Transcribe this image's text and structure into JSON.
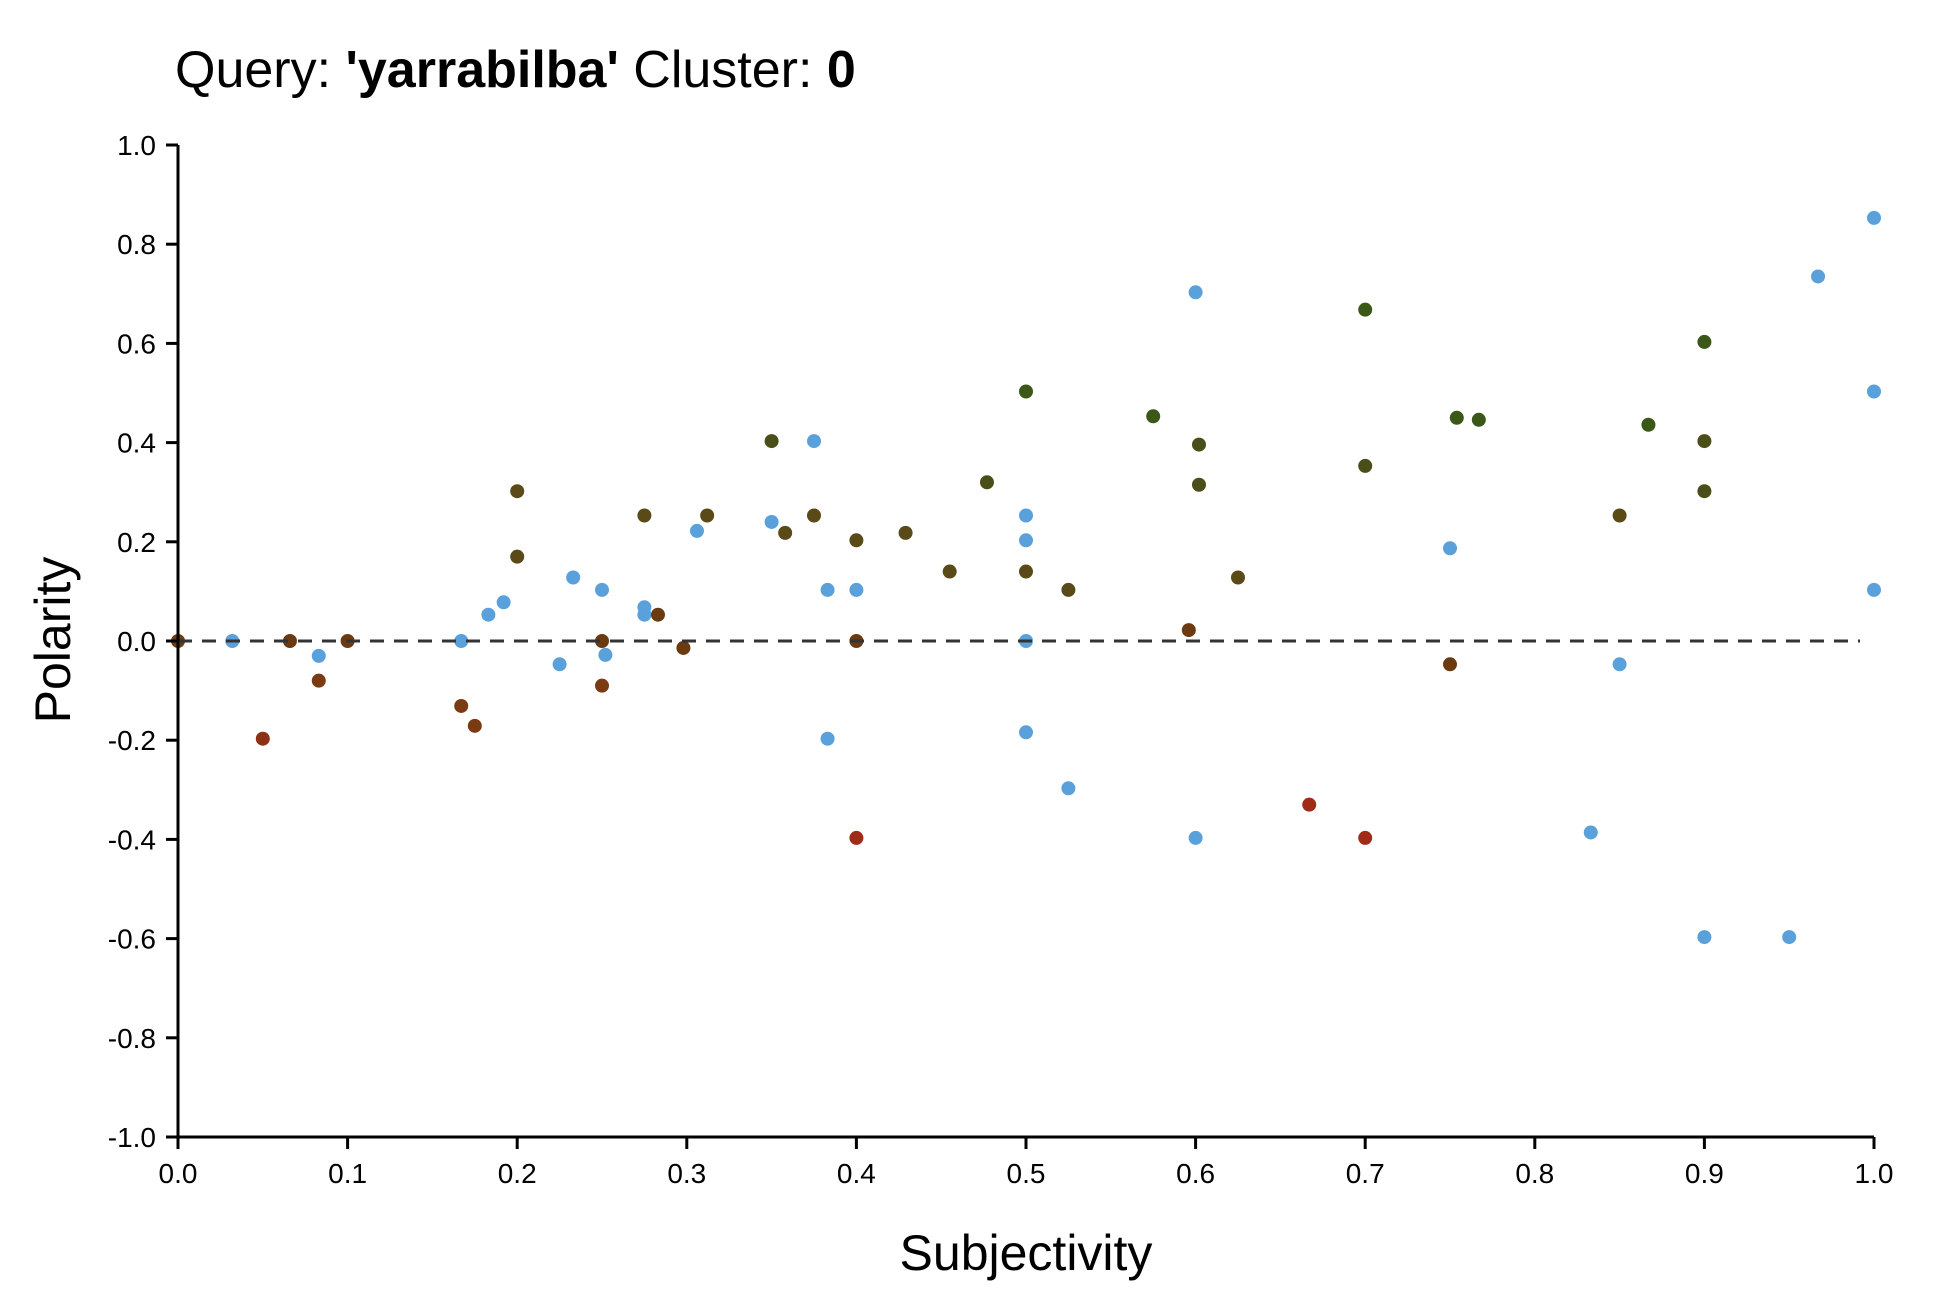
{
  "title": {
    "query_label": "Query:",
    "query_value": "'yarrabilba'",
    "cluster_label": "Cluster:",
    "cluster_value": "0"
  },
  "chart_data": {
    "type": "scatter",
    "xlabel": "Subjectivity",
    "ylabel": "Polarity",
    "xlim": [
      0,
      1
    ],
    "ylim": [
      -1,
      1
    ],
    "x_ticks": [
      "0.0",
      "0.1",
      "0.2",
      "0.3",
      "0.4",
      "0.5",
      "0.6",
      "0.7",
      "0.8",
      "0.9",
      "1.0"
    ],
    "y_ticks": [
      "1.0",
      "0.8",
      "0.6",
      "0.4",
      "0.2",
      "0.0",
      "-0.2",
      "-0.4",
      "-0.6",
      "-0.8",
      "-1.0"
    ],
    "zero_line": {
      "y": 0,
      "style": "dashed"
    },
    "grid": false,
    "points": [
      {
        "x": 0.0,
        "y": 0.0,
        "color": "#6b3a10"
      },
      {
        "x": 0.032,
        "y": 0.0,
        "color": "#5aa1dc"
      },
      {
        "x": 0.05,
        "y": -0.197,
        "color": "#8c3114"
      },
      {
        "x": 0.066,
        "y": 0.0,
        "color": "#6b3a10"
      },
      {
        "x": 0.083,
        "y": -0.03,
        "color": "#5aa1dc"
      },
      {
        "x": 0.083,
        "y": -0.08,
        "color": "#7a3a12"
      },
      {
        "x": 0.1,
        "y": 0.0,
        "color": "#6b3a10"
      },
      {
        "x": 0.167,
        "y": 0.0,
        "color": "#5aa1dc"
      },
      {
        "x": 0.167,
        "y": -0.131,
        "color": "#7a3a12"
      },
      {
        "x": 0.175,
        "y": -0.171,
        "color": "#7a3a12"
      },
      {
        "x": 0.183,
        "y": 0.053,
        "color": "#5aa1dc"
      },
      {
        "x": 0.192,
        "y": 0.078,
        "color": "#5aa1dc"
      },
      {
        "x": 0.2,
        "y": 0.302,
        "color": "#5a4a18"
      },
      {
        "x": 0.2,
        "y": 0.17,
        "color": "#5a4a18"
      },
      {
        "x": 0.225,
        "y": -0.047,
        "color": "#5aa1dc"
      },
      {
        "x": 0.233,
        "y": 0.128,
        "color": "#5aa1dc"
      },
      {
        "x": 0.25,
        "y": 0.103,
        "color": "#5aa1dc"
      },
      {
        "x": 0.25,
        "y": 0.0,
        "color": "#6b3a10"
      },
      {
        "x": 0.25,
        "y": -0.09,
        "color": "#7a3a12"
      },
      {
        "x": 0.252,
        "y": -0.028,
        "color": "#5aa1dc"
      },
      {
        "x": 0.275,
        "y": 0.253,
        "color": "#5a4a18"
      },
      {
        "x": 0.275,
        "y": 0.068,
        "color": "#5aa1dc"
      },
      {
        "x": 0.275,
        "y": 0.053,
        "color": "#5aa1dc"
      },
      {
        "x": 0.283,
        "y": 0.053,
        "color": "#6b3a10"
      },
      {
        "x": 0.298,
        "y": -0.014,
        "color": "#6b3a10"
      },
      {
        "x": 0.306,
        "y": 0.222,
        "color": "#5aa1dc"
      },
      {
        "x": 0.312,
        "y": 0.253,
        "color": "#5a4a18"
      },
      {
        "x": 0.35,
        "y": 0.403,
        "color": "#4a4e18"
      },
      {
        "x": 0.35,
        "y": 0.24,
        "color": "#5aa1dc"
      },
      {
        "x": 0.358,
        "y": 0.218,
        "color": "#5a4a18"
      },
      {
        "x": 0.375,
        "y": 0.403,
        "color": "#5aa1dc"
      },
      {
        "x": 0.375,
        "y": 0.253,
        "color": "#5a4a18"
      },
      {
        "x": 0.383,
        "y": 0.103,
        "color": "#5aa1dc"
      },
      {
        "x": 0.383,
        "y": -0.197,
        "color": "#5aa1dc"
      },
      {
        "x": 0.4,
        "y": 0.203,
        "color": "#5a4a18"
      },
      {
        "x": 0.4,
        "y": 0.103,
        "color": "#5aa1dc"
      },
      {
        "x": 0.4,
        "y": 0.0,
        "color": "#6b3a10"
      },
      {
        "x": 0.4,
        "y": -0.397,
        "color": "#a02c18"
      },
      {
        "x": 0.429,
        "y": 0.218,
        "color": "#5a4a18"
      },
      {
        "x": 0.455,
        "y": 0.14,
        "color": "#5a4a18"
      },
      {
        "x": 0.477,
        "y": 0.32,
        "color": "#4a4e18"
      },
      {
        "x": 0.5,
        "y": 0.503,
        "color": "#3c5818"
      },
      {
        "x": 0.5,
        "y": 0.253,
        "color": "#5aa1dc"
      },
      {
        "x": 0.5,
        "y": 0.203,
        "color": "#5aa1dc"
      },
      {
        "x": 0.5,
        "y": 0.14,
        "color": "#5a4a18"
      },
      {
        "x": 0.5,
        "y": 0.0,
        "color": "#5aa1dc"
      },
      {
        "x": 0.5,
        "y": -0.184,
        "color": "#5aa1dc"
      },
      {
        "x": 0.525,
        "y": 0.103,
        "color": "#5a4a18"
      },
      {
        "x": 0.525,
        "y": -0.297,
        "color": "#5aa1dc"
      },
      {
        "x": 0.575,
        "y": 0.453,
        "color": "#3c5818"
      },
      {
        "x": 0.596,
        "y": 0.022,
        "color": "#6b3a10"
      },
      {
        "x": 0.6,
        "y": 0.703,
        "color": "#5aa1dc"
      },
      {
        "x": 0.6,
        "y": -0.397,
        "color": "#5aa1dc"
      },
      {
        "x": 0.602,
        "y": 0.396,
        "color": "#4a4e18"
      },
      {
        "x": 0.602,
        "y": 0.315,
        "color": "#4a4e18"
      },
      {
        "x": 0.625,
        "y": 0.128,
        "color": "#5a4a18"
      },
      {
        "x": 0.667,
        "y": -0.33,
        "color": "#a02c18"
      },
      {
        "x": 0.7,
        "y": 0.668,
        "color": "#3c5818"
      },
      {
        "x": 0.7,
        "y": 0.353,
        "color": "#4a4e18"
      },
      {
        "x": 0.7,
        "y": -0.397,
        "color": "#a02c18"
      },
      {
        "x": 0.75,
        "y": 0.187,
        "color": "#5aa1dc"
      },
      {
        "x": 0.75,
        "y": -0.047,
        "color": "#6b3a10"
      },
      {
        "x": 0.754,
        "y": 0.45,
        "color": "#3c5818"
      },
      {
        "x": 0.767,
        "y": 0.446,
        "color": "#3c5818"
      },
      {
        "x": 0.833,
        "y": -0.386,
        "color": "#5aa1dc"
      },
      {
        "x": 0.85,
        "y": 0.253,
        "color": "#5a4a18"
      },
      {
        "x": 0.85,
        "y": -0.047,
        "color": "#5aa1dc"
      },
      {
        "x": 0.867,
        "y": 0.436,
        "color": "#3c5818"
      },
      {
        "x": 0.9,
        "y": 0.603,
        "color": "#3c5818"
      },
      {
        "x": 0.9,
        "y": 0.403,
        "color": "#4a4e18"
      },
      {
        "x": 0.9,
        "y": 0.302,
        "color": "#4a4e18"
      },
      {
        "x": 0.9,
        "y": -0.597,
        "color": "#5aa1dc"
      },
      {
        "x": 0.95,
        "y": -0.597,
        "color": "#5aa1dc"
      },
      {
        "x": 0.967,
        "y": 0.735,
        "color": "#5aa1dc"
      },
      {
        "x": 1.0,
        "y": 0.853,
        "color": "#5aa1dc"
      },
      {
        "x": 1.0,
        "y": 0.503,
        "color": "#5aa1dc"
      },
      {
        "x": 1.0,
        "y": 0.103,
        "color": "#5aa1dc"
      }
    ]
  }
}
